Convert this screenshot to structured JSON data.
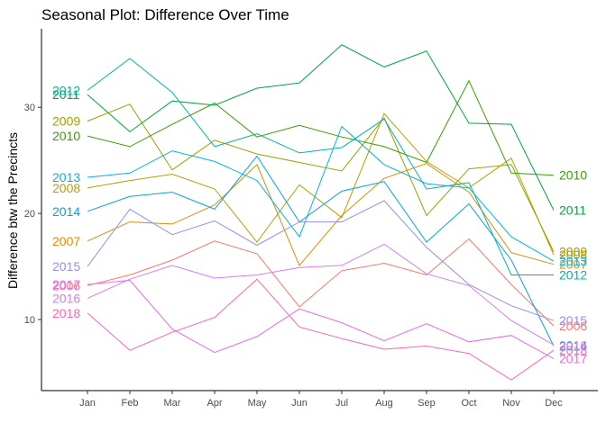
{
  "chart_data": {
    "type": "line",
    "title": "Seasonal Plot: Difference Over Time",
    "xlabel": "",
    "ylabel": "Difference btw the Precincts",
    "categories": [
      "Jan",
      "Feb",
      "Mar",
      "Apr",
      "May",
      "Jun",
      "Jul",
      "Aug",
      "Sep",
      "Oct",
      "Nov",
      "Dec"
    ],
    "yticks": [
      10,
      20,
      30
    ],
    "ylim": [
      3.3,
      37.4
    ],
    "grid": false,
    "legend": "none; series labels at line start and end",
    "series": [
      {
        "name": "2006",
        "color": "#F8766D",
        "start_label": "2006",
        "end_label": "2006",
        "values": [
          13.2,
          14.2,
          15.6,
          17.4,
          16.2,
          11.2,
          14.6,
          15.3,
          14.2,
          17.6,
          13.3,
          9.4
        ]
      },
      {
        "name": "2007",
        "color": "#DE8C00",
        "start_label": "2007",
        "end_label": "2007",
        "values": [
          17.4,
          19.2,
          19.0,
          20.8,
          24.6,
          15.1,
          19.8,
          23.3,
          24.7,
          22.0,
          16.3,
          15.2
        ]
      },
      {
        "name": "2008",
        "color": "#B79F00",
        "start_label": "2008",
        "end_label": "2008",
        "values": [
          22.4,
          23.1,
          23.7,
          22.3,
          17.3,
          22.7,
          19.6,
          29.4,
          24.9,
          22.4,
          25.2,
          16.1
        ]
      },
      {
        "name": "2009",
        "color": "#9F9E00",
        "start_label": "2009",
        "end_label": "2009",
        "values": [
          28.7,
          30.3,
          24.1,
          26.9,
          25.6,
          24.8,
          24.0,
          29.0,
          19.8,
          24.2,
          24.6,
          16.4
        ]
      },
      {
        "name": "2010",
        "color": "#389F00",
        "start_label": "2010",
        "end_label": "2010",
        "values": [
          27.3,
          26.3,
          28.4,
          30.4,
          27.2,
          28.3,
          27.2,
          26.3,
          24.8,
          32.5,
          23.8,
          23.6
        ]
      },
      {
        "name": "2011",
        "color": "#00A83F",
        "start_label": "2011",
        "end_label": "2011",
        "values": [
          31.2,
          27.7,
          30.6,
          30.2,
          31.8,
          32.3,
          35.9,
          33.8,
          35.3,
          28.5,
          28.4,
          20.3
        ]
      },
      {
        "name": "2012",
        "color": "#00B3A9",
        "start_label": "2012",
        "end_label": "2012",
        "values": [
          31.6,
          34.6,
          31.4,
          26.3,
          27.5,
          25.7,
          26.2,
          28.9,
          22.3,
          22.9,
          14.2,
          14.2
        ]
      },
      {
        "name": "2013",
        "color": "#00B3E6",
        "start_label": "2013",
        "end_label": "2013",
        "values": [
          23.4,
          23.8,
          25.9,
          24.9,
          23.1,
          17.8,
          28.2,
          24.6,
          22.8,
          22.4,
          17.8,
          15.5
        ]
      },
      {
        "name": "2014",
        "color": "#04A4E2",
        "start_label": "2014",
        "end_label": "2014",
        "values": [
          20.2,
          21.6,
          22.0,
          20.4,
          25.4,
          19.2,
          22.1,
          23.0,
          17.3,
          20.9,
          15.6,
          7.5
        ]
      },
      {
        "name": "2015",
        "color": "#938EEF",
        "start_label": "2015",
        "end_label": "2015",
        "values": [
          15.0,
          20.4,
          18.0,
          19.3,
          17.0,
          19.2,
          19.2,
          21.2,
          16.8,
          13.3,
          11.3,
          9.9
        ]
      },
      {
        "name": "2016",
        "color": "#D97CF1",
        "start_label": "2016",
        "end_label": "2016",
        "values": [
          12.0,
          13.8,
          15.1,
          13.9,
          14.2,
          14.9,
          15.1,
          17.1,
          14.3,
          13.2,
          9.9,
          7.6
        ]
      },
      {
        "name": "2017",
        "color": "#EF67EB",
        "start_label": "2017",
        "end_label": "2017",
        "values": [
          13.3,
          13.7,
          9.1,
          6.9,
          8.4,
          11.0,
          9.7,
          8.0,
          9.6,
          7.9,
          8.5,
          6.3
        ]
      },
      {
        "name": "2018",
        "color": "#FF63B4",
        "start_label": "2018",
        "end_label": "2018",
        "values": [
          10.6,
          7.1,
          8.8,
          10.2,
          13.8,
          9.3,
          8.2,
          7.2,
          7.5,
          6.8,
          4.3,
          7.1
        ]
      }
    ]
  }
}
